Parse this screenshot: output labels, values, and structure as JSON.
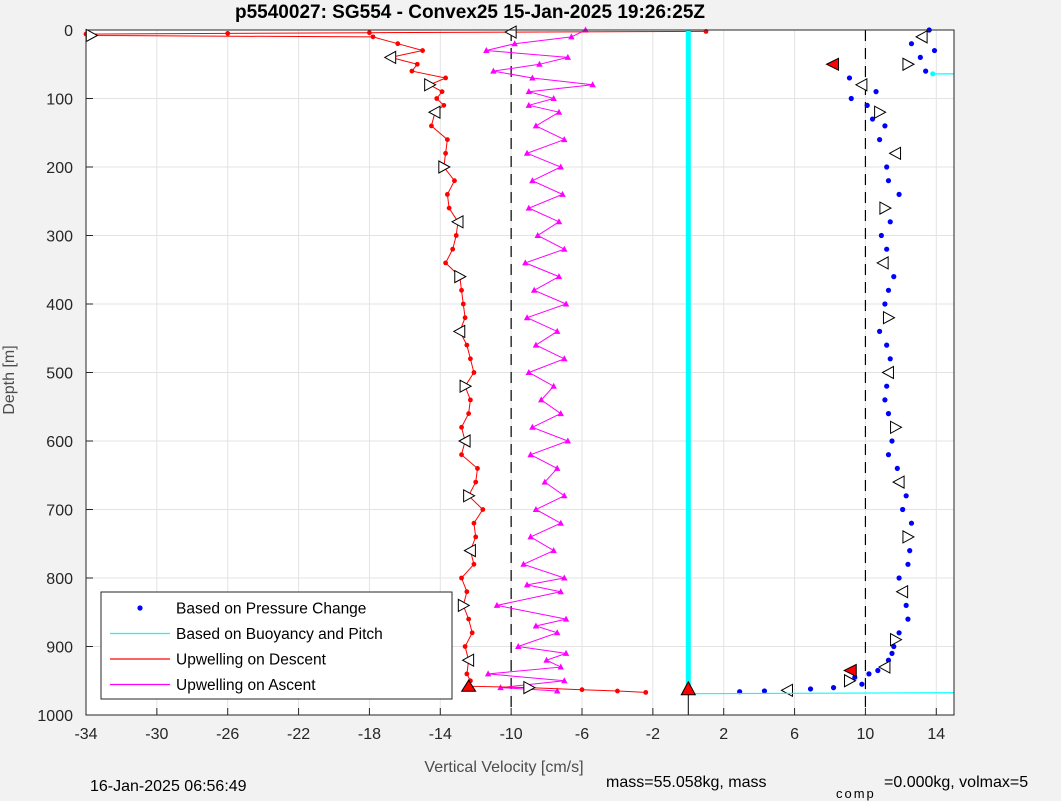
{
  "chart_data": {
    "type": "line",
    "title": "p5540027: SG554 - Convex25 15-Jan-2025 19:26:25Z",
    "xlabel": "Vertical Velocity [cm/s]",
    "ylabel": "Depth [m]",
    "xlim": [
      -34,
      15
    ],
    "ylim": [
      0,
      1000
    ],
    "y_reversed": true,
    "xticks": [
      -34,
      -30,
      -26,
      -22,
      -18,
      -14,
      -10,
      -6,
      -2,
      2,
      6,
      10,
      14
    ],
    "yticks": [
      0,
      100,
      200,
      300,
      400,
      500,
      600,
      700,
      800,
      900,
      1000
    ],
    "grid": true,
    "legend_position": "bottom-left",
    "reference_lines_x": [
      -10,
      10
    ],
    "series": [
      {
        "name": "Based on Pressure Change",
        "color": "#0000ff",
        "marker": "dot",
        "x": [
          13.6,
          13.2,
          12.6,
          13.9,
          13.1,
          12.4,
          13.4,
          8.1,
          9.1,
          9.8,
          10.6,
          9.2,
          10.1,
          10.8,
          10.4,
          11.1,
          10.8,
          11.7,
          11.2,
          11.3,
          11.9,
          11.1,
          11.4,
          10.9,
          11.2,
          11.0,
          11.6,
          11.3,
          11.1,
          11.3,
          10.8,
          11.2,
          11.4,
          11.3,
          11.2,
          11.1,
          11.3,
          11.7,
          11.5,
          11.3,
          11.8,
          11.9,
          12.3,
          12.1,
          12.6,
          12.4,
          12.5,
          12.4,
          11.9,
          12.1,
          12.3,
          12.4,
          11.9,
          11.7,
          11.6,
          11.5,
          11.3,
          11.1,
          10.7,
          10.2,
          9.4,
          9.1,
          9.8,
          8.2,
          6.9,
          5.6,
          4.3,
          2.9
        ],
        "y": [
          0,
          10,
          20,
          30,
          40,
          50,
          60,
          50,
          70,
          80,
          90,
          100,
          110,
          120,
          130,
          140,
          160,
          180,
          200,
          220,
          240,
          260,
          280,
          300,
          320,
          340,
          360,
          380,
          400,
          420,
          440,
          460,
          480,
          500,
          520,
          540,
          560,
          580,
          600,
          620,
          640,
          660,
          680,
          700,
          720,
          740,
          760,
          780,
          800,
          820,
          840,
          860,
          880,
          890,
          900,
          910,
          920,
          930,
          935,
          940,
          945,
          950,
          955,
          960,
          962,
          964,
          965,
          966
        ]
      },
      {
        "name": "Based on Buoyancy and Pitch",
        "color": "#00ffff",
        "marker": "none",
        "x": [
          0,
          0,
          0,
          0,
          0,
          0
        ],
        "y": [
          0,
          200,
          400,
          600,
          800,
          966
        ]
      },
      {
        "name": "Upwelling on Descent",
        "color": "#ff0000",
        "marker": "dot",
        "x": [
          1.0,
          -10.0,
          -18.0,
          -26.0,
          -34.0,
          -33.7,
          -17.8,
          -16.4,
          -15.0,
          -16.8,
          -15.3,
          -15.6,
          -13.7,
          -14.6,
          -13.9,
          -14.2,
          -13.8,
          -14.3,
          -14.5,
          -13.6,
          -13.7,
          -13.8,
          -13.2,
          -13.6,
          -13.5,
          -13.0,
          -13.1,
          -13.3,
          -13.7,
          -12.9,
          -12.8,
          -12.7,
          -12.6,
          -12.9,
          -12.5,
          -12.3,
          -12.1,
          -12.6,
          -12.3,
          -12.4,
          -12.8,
          -12.6,
          -12.8,
          -11.9,
          -12.0,
          -12.4,
          -11.6,
          -12.1,
          -12.0,
          -12.3,
          -12.1,
          -12.8,
          -12.5,
          -12.7,
          -12.4,
          -12.2,
          -12.6,
          -12.4,
          -12.5,
          -12.3,
          -12.4,
          -9.0,
          -6.0,
          -4.0,
          -2.4
        ],
        "y": [
          2,
          3,
          4,
          5,
          6,
          8,
          10,
          20,
          30,
          40,
          50,
          60,
          70,
          80,
          90,
          100,
          110,
          120,
          140,
          160,
          180,
          200,
          220,
          240,
          260,
          280,
          300,
          320,
          340,
          360,
          380,
          400,
          420,
          440,
          460,
          480,
          500,
          520,
          540,
          560,
          580,
          600,
          620,
          640,
          660,
          680,
          700,
          720,
          740,
          760,
          780,
          800,
          820,
          840,
          860,
          880,
          900,
          920,
          940,
          950,
          958,
          960,
          963,
          965,
          967
        ]
      },
      {
        "name": "Upwelling on Ascent",
        "color": "#ff00ff",
        "marker": "triangle",
        "x": [
          -5.8,
          -6.6,
          -9.8,
          -11.4,
          -6.8,
          -8.4,
          -11.0,
          -8.8,
          -5.4,
          -9.0,
          -7.6,
          -9.0,
          -7.3,
          -8.6,
          -7.0,
          -9.1,
          -7.2,
          -8.8,
          -7.1,
          -9.0,
          -7.3,
          -8.5,
          -7.0,
          -9.2,
          -7.3,
          -8.7,
          -6.9,
          -9.1,
          -7.4,
          -8.6,
          -7.0,
          -9.0,
          -7.6,
          -8.3,
          -7.2,
          -8.8,
          -6.8,
          -8.9,
          -7.4,
          -8.1,
          -7.0,
          -8.6,
          -7.2,
          -8.9,
          -7.6,
          -9.3,
          -7.0,
          -9.1,
          -7.2,
          -10.8,
          -6.9,
          -8.6,
          -7.4,
          -9.6,
          -6.9,
          -8.0,
          -7.2,
          -11.3,
          -7.0,
          -10.6,
          -7.4
        ],
        "y": [
          0,
          10,
          20,
          30,
          40,
          50,
          60,
          70,
          80,
          90,
          100,
          110,
          120,
          140,
          160,
          180,
          200,
          220,
          240,
          260,
          280,
          300,
          320,
          340,
          360,
          380,
          400,
          420,
          440,
          460,
          480,
          500,
          520,
          540,
          560,
          580,
          600,
          620,
          640,
          660,
          680,
          700,
          720,
          740,
          760,
          780,
          800,
          810,
          820,
          840,
          860,
          870,
          880,
          900,
          910,
          920,
          930,
          940,
          950,
          960,
          965
        ]
      }
    ]
  },
  "footer": {
    "date_text": "16-Jan-2025 06:56:49",
    "mass_text": "mass=55.058kg, mass",
    "comp_subscript": "comp",
    "comp_text": "=0.000kg, volmax=5"
  }
}
